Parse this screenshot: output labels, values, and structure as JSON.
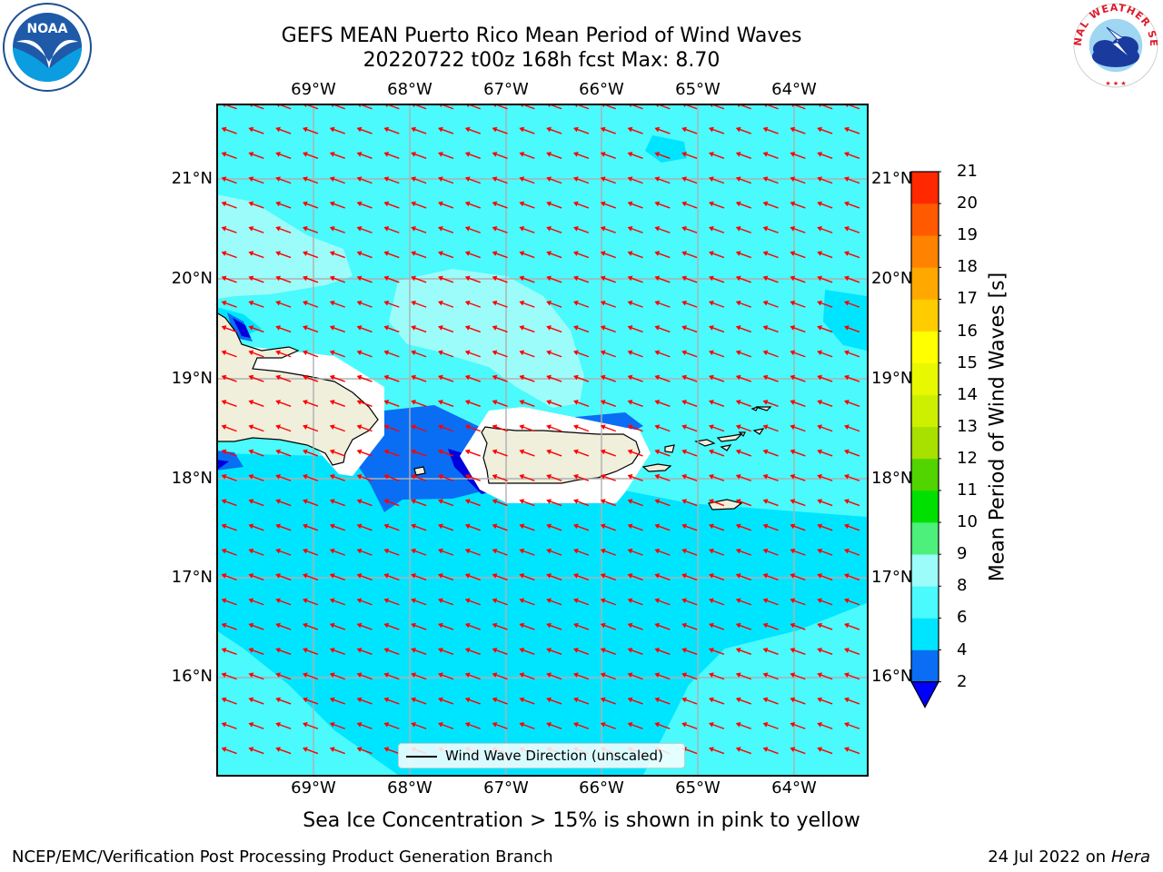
{
  "title_line1": "GEFS MEAN Puerto Rico Mean Period of Wind Waves",
  "title_line2": "20220722 t00z 168h fcst   Max: 8.70",
  "lon_ticks": [
    "69°W",
    "68°W",
    "67°W",
    "66°W",
    "65°W",
    "64°W"
  ],
  "lat_ticks": [
    "21°N",
    "20°N",
    "19°N",
    "18°N",
    "17°N",
    "16°N"
  ],
  "colorbar": {
    "label": "Mean Period of Wind Waves [s]",
    "ticks": [
      "2",
      "4",
      "6",
      "8",
      "9",
      "10",
      "11",
      "12",
      "13",
      "14",
      "15",
      "16",
      "17",
      "18",
      "19",
      "20",
      "21"
    ],
    "colors": [
      "#0a6ef5",
      "#00e5ff",
      "#4afafc",
      "#9cfcfa",
      "#4cf07a",
      "#00e000",
      "#52d400",
      "#a8e000",
      "#cdf000",
      "#e8f800",
      "#ffff00",
      "#ffcc00",
      "#ffa800",
      "#ff8200",
      "#ff5a00",
      "#ff2800"
    ],
    "under_color": "#0000ff"
  },
  "field_colors": {
    "ocean_base": "#4afafc",
    "lighter_band": "#9cfcfa",
    "darker_band": "#00e5ff",
    "short_period": "#0a6ef5",
    "very_short": "#0000dd",
    "land": "#efefdc",
    "arrow": "#ff0000"
  },
  "legend_label": "Wind Wave Direction (unscaled)",
  "note": "Sea Ice Concentration > 15% is shown in pink to yellow",
  "footer_left": "NCEP/EMC/Verification Post Processing Product Generation Branch",
  "footer_right_prefix": "24 Jul 2022 on ",
  "footer_right_host": "Hera",
  "logo_left_text": "NOAA",
  "logo_right_text": "NATIONAL WEATHER SERVICE"
}
